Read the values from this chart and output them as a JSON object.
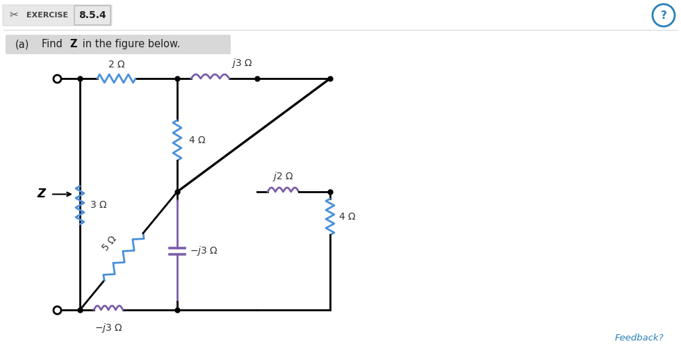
{
  "title": "EXERCISE",
  "exercise_num": "8.5.4",
  "part_label": "(a)",
  "part_text": "Find ",
  "part_text_bold": "Z",
  "part_text_end": " in the figure below.",
  "bg_color": "#ffffff",
  "line_color": "#000000",
  "resistor_color": "#4a90d9",
  "inductor_color": "#7b5ea7",
  "capacitor_color": "#7b5ea7",
  "label_color": "#333333",
  "feedback_color": "#2980b9",
  "header_bg": "#e8e8e8",
  "highlight_bg": "#c8c8c8"
}
